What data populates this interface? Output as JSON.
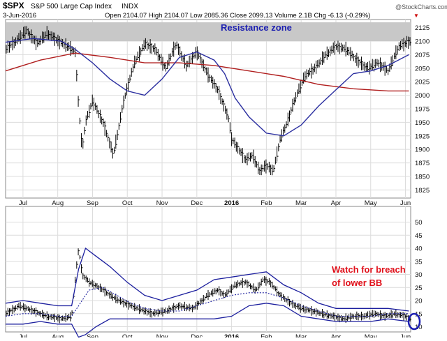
{
  "header": {
    "ticker": "$SPX",
    "name": "S&P 500 Large Cap Index",
    "exchange": "INDX",
    "date": "3-Jun-2016",
    "quote": "Open 2104.07  High 2104.07  Low 2085.36  Close 2099.13  Volume 2.1B  Chg -6.13 (-0.29%)",
    "brand": "@StockCharts.com"
  },
  "colors": {
    "price_bar": "#000000",
    "ma50": "#2b2fa0",
    "ma200": "#b01e1e",
    "bollinger": "#1c1f9e",
    "annotation_red": "#e0101a",
    "resistance_fill": "#c8c8c8",
    "grid": "#dcdcdc"
  },
  "chart_data": [
    {
      "type": "line",
      "title": "",
      "annotation": "Resistance zone",
      "resistance_band": [
        2100,
        2135
      ],
      "ylim": [
        1810,
        2140
      ],
      "yticks": [
        1825,
        1850,
        1875,
        1900,
        1925,
        1950,
        1975,
        2000,
        2025,
        2050,
        2075,
        2100,
        2125
      ],
      "xtick_labels": [
        "Jul",
        "Aug",
        "Sep",
        "Oct",
        "Nov",
        "Dec",
        "2016",
        "Feb",
        "Mar",
        "Apr",
        "May",
        "Jun"
      ],
      "x_month_index": [
        0.5,
        1.5,
        2.5,
        3.5,
        4.5,
        5.5,
        6.5,
        7.5,
        8.5,
        9.5,
        10.5,
        11.5
      ],
      "x_range": [
        0,
        11.65
      ],
      "series": [
        {
          "kind": "ohlc-bars",
          "x": [
            0.0,
            0.3,
            0.6,
            0.9,
            1.2,
            1.5,
            1.8,
            2.0,
            2.1,
            2.2,
            2.3,
            2.5,
            2.8,
            3.1,
            3.4,
            3.7,
            4.0,
            4.3,
            4.6,
            4.9,
            5.2,
            5.5,
            5.8,
            6.1,
            6.4,
            6.5,
            6.7,
            6.9,
            7.1,
            7.3,
            7.5,
            7.7,
            7.9,
            8.1,
            8.3,
            8.6,
            8.9,
            9.2,
            9.5,
            9.8,
            10.1,
            10.4,
            10.7,
            11.0,
            11.3,
            11.6
          ],
          "close": [
            2085,
            2100,
            2120,
            2095,
            2115,
            2100,
            2090,
            2080,
            1980,
            1900,
            1950,
            1990,
            1950,
            1890,
            1990,
            2060,
            2095,
            2085,
            2050,
            2095,
            2055,
            2080,
            2040,
            2010,
            1960,
            1920,
            1900,
            1880,
            1890,
            1860,
            1870,
            1860,
            1920,
            1950,
            1990,
            2035,
            2050,
            2075,
            2090,
            2085,
            2065,
            2050,
            2060,
            2045,
            2090,
            2099
          ]
        },
        {
          "name": "",
          "kind": "ma50",
          "x": [
            0.0,
            0.8,
            1.6,
            2.0,
            2.5,
            3.0,
            3.5,
            4.0,
            4.5,
            5.0,
            5.5,
            6.0,
            6.3,
            6.6,
            7.0,
            7.5,
            8.0,
            8.5,
            9.0,
            9.5,
            10.0,
            10.5,
            11.0,
            11.6
          ],
          "y": [
            2098,
            2105,
            2100,
            2085,
            2060,
            2030,
            2008,
            2000,
            2030,
            2070,
            2080,
            2065,
            2040,
            1995,
            1960,
            1930,
            1925,
            1945,
            1980,
            2010,
            2040,
            2045,
            2055,
            2075
          ]
        },
        {
          "name": "",
          "kind": "ma200",
          "x": [
            0.0,
            1.0,
            2.0,
            3.0,
            4.0,
            5.0,
            6.0,
            7.0,
            8.0,
            9.0,
            10.0,
            11.0,
            11.6
          ],
          "y": [
            2045,
            2065,
            2078,
            2070,
            2060,
            2060,
            2055,
            2045,
            2035,
            2020,
            2012,
            2008,
            2008
          ]
        }
      ]
    },
    {
      "type": "line",
      "title": "",
      "annotation": "Watch for breach of lower BB",
      "ylim": [
        8,
        56
      ],
      "yticks": [
        10,
        15,
        20,
        25,
        30,
        35,
        40,
        45,
        50
      ],
      "xtick_labels": [
        "Jul",
        "Aug",
        "Sep",
        "Oct",
        "Nov",
        "Dec",
        "2016",
        "Feb",
        "Mar",
        "Apr",
        "May",
        "Jun"
      ],
      "x_month_index": [
        0.5,
        1.5,
        2.5,
        3.5,
        4.5,
        5.5,
        6.5,
        7.5,
        8.5,
        9.5,
        10.5,
        11.5
      ],
      "x_range": [
        0,
        11.65
      ],
      "series": [
        {
          "name": "",
          "kind": "vix-bars",
          "x": [
            0.0,
            0.4,
            0.8,
            1.2,
            1.6,
            1.9,
            2.0,
            2.1,
            2.2,
            2.4,
            2.7,
            3.0,
            3.4,
            3.8,
            4.2,
            4.6,
            5.0,
            5.4,
            5.8,
            6.1,
            6.3,
            6.6,
            6.9,
            7.2,
            7.4,
            7.6,
            7.9,
            8.2,
            8.5,
            8.8,
            9.1,
            9.4,
            9.7,
            10.0,
            10.3,
            10.6,
            10.9,
            11.2,
            11.5,
            11.6
          ],
          "y": [
            15,
            18,
            16,
            14,
            13,
            14,
            28,
            40,
            30,
            27,
            25,
            22,
            19,
            17,
            15,
            16,
            18,
            17,
            22,
            24,
            22,
            26,
            27,
            24,
            28,
            27,
            22,
            19,
            17,
            16,
            15,
            14,
            13,
            14,
            14,
            15,
            14,
            15,
            14,
            13
          ]
        },
        {
          "name": "",
          "kind": "bb-upper",
          "x": [
            0.0,
            0.5,
            1.0,
            1.5,
            1.9,
            2.1,
            2.3,
            2.6,
            3.0,
            3.5,
            4.0,
            4.5,
            5.0,
            5.5,
            6.0,
            6.5,
            7.0,
            7.5,
            8.0,
            8.5,
            9.0,
            9.5,
            10.0,
            10.5,
            11.0,
            11.6
          ],
          "y": [
            19,
            20,
            19,
            18,
            18,
            32,
            40,
            37,
            33,
            27,
            22,
            20,
            22,
            24,
            28,
            29,
            30,
            31,
            26,
            23,
            19,
            17,
            17,
            17,
            17,
            16
          ]
        },
        {
          "name": "",
          "kind": "bb-middle",
          "x": [
            0.0,
            0.5,
            1.0,
            1.5,
            1.9,
            2.1,
            2.4,
            2.8,
            3.2,
            3.6,
            4.0,
            4.5,
            5.0,
            5.5,
            6.0,
            6.5,
            7.0,
            7.5,
            8.0,
            8.5,
            9.0,
            9.5,
            10.0,
            10.5,
            11.0,
            11.6
          ],
          "y": [
            14,
            15,
            15,
            14,
            14,
            18,
            24,
            25,
            22,
            19,
            17,
            16,
            16,
            18,
            20,
            22,
            23,
            23,
            21,
            18,
            16,
            14,
            14,
            14,
            15,
            15
          ]
        },
        {
          "name": "",
          "kind": "bb-lower",
          "x": [
            0.0,
            0.5,
            1.0,
            1.5,
            1.9,
            2.1,
            2.3,
            2.6,
            3.0,
            3.5,
            4.0,
            4.5,
            5.0,
            5.5,
            6.0,
            6.5,
            7.0,
            7.5,
            8.0,
            8.5,
            9.0,
            9.5,
            10.0,
            10.5,
            11.0,
            11.6
          ],
          "y": [
            11,
            11,
            12,
            11,
            11,
            6,
            7,
            10,
            13,
            13,
            13,
            13,
            13,
            13,
            13,
            14,
            18,
            19,
            18,
            14,
            13,
            12,
            12,
            12,
            13,
            12
          ]
        }
      ]
    }
  ]
}
